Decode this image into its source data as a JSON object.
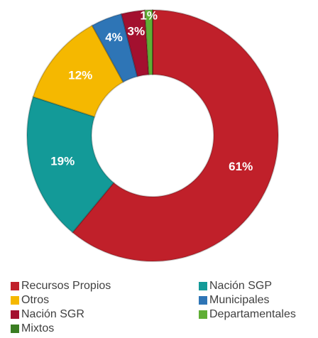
{
  "chart_data": {
    "type": "donut",
    "categories": [
      "Recursos Propios",
      "Nación SGP",
      "Otros",
      "Municipales",
      "Nación SGR",
      "Departamentales",
      "Mixtos"
    ],
    "values": [
      61,
      19,
      12,
      4,
      3,
      1,
      0
    ],
    "value_labels": [
      "61%",
      "19%",
      "12%",
      "4%",
      "3%",
      "1%",
      null
    ],
    "colors": [
      "#c0202a",
      "#139a98",
      "#f5b800",
      "#2e75b6",
      "#a3102f",
      "#5fae35",
      "#3a7d22"
    ],
    "legend": "bottom"
  }
}
